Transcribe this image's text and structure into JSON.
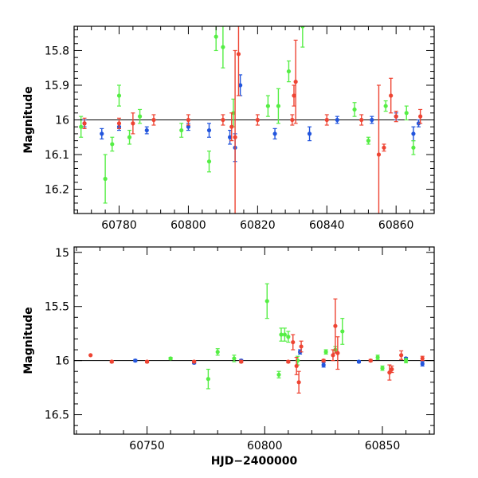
{
  "chart_data": [
    {
      "type": "scatter",
      "title": "",
      "xlabel": "",
      "ylabel": "Magnitude",
      "xlim": [
        60767,
        60871
      ],
      "ylim": [
        16.27,
        15.73
      ],
      "y_inverted": true,
      "xticks": [
        60780,
        60800,
        60820,
        60840,
        60860
      ],
      "yticks": [
        15.8,
        15.9,
        16.0,
        16.1,
        16.2
      ],
      "ytick_labels": [
        "15.8",
        "15.9",
        "16",
        "16.1",
        "16.2"
      ],
      "reference_line": 16.0,
      "series": [
        {
          "color": "#2255dd",
          "points": [
            {
              "x": 60770,
              "y": 16.01,
              "err": 0.01
            },
            {
              "x": 60775,
              "y": 16.04,
              "err": 0.015
            },
            {
              "x": 60780,
              "y": 16.02,
              "err": 0.01
            },
            {
              "x": 60788,
              "y": 16.03,
              "err": 0.01
            },
            {
              "x": 60800,
              "y": 16.02,
              "err": 0.01
            },
            {
              "x": 60806,
              "y": 16.03,
              "err": 0.02
            },
            {
              "x": 60812,
              "y": 16.05,
              "err": 0.02
            },
            {
              "x": 60813.5,
              "y": 16.08,
              "err": 0.04
            },
            {
              "x": 60815,
              "y": 15.9,
              "err": 0.03
            },
            {
              "x": 60825,
              "y": 16.04,
              "err": 0.015
            },
            {
              "x": 60835,
              "y": 16.04,
              "err": 0.02
            },
            {
              "x": 60843,
              "y": 16.0,
              "err": 0.01
            },
            {
              "x": 60853,
              "y": 16.0,
              "err": 0.01
            },
            {
              "x": 60860,
              "y": 15.99,
              "err": 0.01
            },
            {
              "x": 60865,
              "y": 16.04,
              "err": 0.02
            },
            {
              "x": 60866.5,
              "y": 16.01,
              "err": 0.01
            }
          ]
        },
        {
          "color": "#55ee44",
          "points": [
            {
              "x": 60769,
              "y": 16.02,
              "err": 0.03
            },
            {
              "x": 60776,
              "y": 16.17,
              "err": 0.07
            },
            {
              "x": 60778,
              "y": 16.07,
              "err": 0.02
            },
            {
              "x": 60780,
              "y": 15.93,
              "err": 0.03
            },
            {
              "x": 60783,
              "y": 16.05,
              "err": 0.02
            },
            {
              "x": 60786,
              "y": 15.99,
              "err": 0.02
            },
            {
              "x": 60798,
              "y": 16.03,
              "err": 0.02
            },
            {
              "x": 60806,
              "y": 16.12,
              "err": 0.03
            },
            {
              "x": 60808,
              "y": 15.76,
              "err": 0.04
            },
            {
              "x": 60810,
              "y": 15.79,
              "err": 0.06
            },
            {
              "x": 60813,
              "y": 15.98,
              "err": 0.04
            },
            {
              "x": 60823,
              "y": 15.96,
              "err": 0.03
            },
            {
              "x": 60826,
              "y": 15.96,
              "err": 0.05
            },
            {
              "x": 60829,
              "y": 15.86,
              "err": 0.03
            },
            {
              "x": 60833,
              "y": 15.73,
              "err": 0.06
            },
            {
              "x": 60848,
              "y": 15.97,
              "err": 0.02
            },
            {
              "x": 60852,
              "y": 16.06,
              "err": 0.01
            },
            {
              "x": 60857,
              "y": 15.96,
              "err": 0.015
            },
            {
              "x": 60863,
              "y": 15.98,
              "err": 0.02
            },
            {
              "x": 60865,
              "y": 16.08,
              "err": 0.02
            }
          ]
        },
        {
          "color": "#ee4433",
          "points": [
            {
              "x": 60770,
              "y": 16.01,
              "err": 0.015
            },
            {
              "x": 60780,
              "y": 16.01,
              "err": 0.015
            },
            {
              "x": 60784,
              "y": 16.01,
              "err": 0.03
            },
            {
              "x": 60790,
              "y": 16.0,
              "err": 0.015
            },
            {
              "x": 60800,
              "y": 16.0,
              "err": 0.015
            },
            {
              "x": 60810,
              "y": 16.0,
              "err": 0.015
            },
            {
              "x": 60812.5,
              "y": 16.02,
              "err": 0.04
            },
            {
              "x": 60813.5,
              "y": 16.05,
              "err": 0.25
            },
            {
              "x": 60814.5,
              "y": 15.81,
              "err": 0.12
            },
            {
              "x": 60820,
              "y": 16.0,
              "err": 0.015
            },
            {
              "x": 60830,
              "y": 16.0,
              "err": 0.015
            },
            {
              "x": 60830.5,
              "y": 15.93,
              "err": 0.03
            },
            {
              "x": 60831,
              "y": 15.89,
              "err": 0.12
            },
            {
              "x": 60840,
              "y": 16.0,
              "err": 0.015
            },
            {
              "x": 60850,
              "y": 16.0,
              "err": 0.015
            },
            {
              "x": 60855,
              "y": 16.1,
              "err": 0.2
            },
            {
              "x": 60856.5,
              "y": 16.08,
              "err": 0.01
            },
            {
              "x": 60858.5,
              "y": 15.93,
              "err": 0.05
            },
            {
              "x": 60860,
              "y": 15.99,
              "err": 0.015
            },
            {
              "x": 60867,
              "y": 15.99,
              "err": 0.02
            }
          ]
        }
      ]
    },
    {
      "type": "scatter",
      "title": "",
      "xlabel": "HJD−2400000",
      "ylabel": "Magnitude",
      "xlim": [
        60719,
        60872
      ],
      "ylim": [
        16.68,
        14.95
      ],
      "y_inverted": true,
      "xticks": [
        60750,
        60800,
        60850
      ],
      "yticks": [
        15.0,
        15.5,
        16.0,
        16.5
      ],
      "ytick_labels": [
        "15",
        "15.5",
        "16",
        "16.5"
      ],
      "reference_line": 16.0,
      "series": [
        {
          "color": "#2255dd",
          "points": [
            {
              "x": 60745,
              "y": 16.0,
              "err": 0.01
            },
            {
              "x": 60770,
              "y": 16.02,
              "err": 0.01
            },
            {
              "x": 60790,
              "y": 16.0,
              "err": 0.01
            },
            {
              "x": 60815,
              "y": 15.92,
              "err": 0.02
            },
            {
              "x": 60825,
              "y": 16.04,
              "err": 0.02
            },
            {
              "x": 60840,
              "y": 16.01,
              "err": 0.01
            },
            {
              "x": 60860,
              "y": 15.98,
              "err": 0.01
            },
            {
              "x": 60867,
              "y": 16.03,
              "err": 0.02
            }
          ]
        },
        {
          "color": "#55ee44",
          "points": [
            {
              "x": 60760,
              "y": 15.98,
              "err": 0.01
            },
            {
              "x": 60776,
              "y": 16.17,
              "err": 0.09
            },
            {
              "x": 60780,
              "y": 15.92,
              "err": 0.03
            },
            {
              "x": 60787,
              "y": 15.98,
              "err": 0.03
            },
            {
              "x": 60801,
              "y": 15.45,
              "err": 0.16
            },
            {
              "x": 60806,
              "y": 16.13,
              "err": 0.03
            },
            {
              "x": 60807,
              "y": 15.76,
              "err": 0.06
            },
            {
              "x": 60808.5,
              "y": 15.76,
              "err": 0.06
            },
            {
              "x": 60810,
              "y": 15.78,
              "err": 0.05
            },
            {
              "x": 60814,
              "y": 16.0,
              "err": 0.04
            },
            {
              "x": 60826,
              "y": 15.92,
              "err": 0.02
            },
            {
              "x": 60830,
              "y": 15.9,
              "err": 0.03
            },
            {
              "x": 60833,
              "y": 15.73,
              "err": 0.12
            },
            {
              "x": 60848,
              "y": 15.97,
              "err": 0.02
            },
            {
              "x": 60850,
              "y": 16.07,
              "err": 0.02
            },
            {
              "x": 60860,
              "y": 16.0,
              "err": 0.02
            }
          ]
        },
        {
          "color": "#ee4433",
          "points": [
            {
              "x": 60726,
              "y": 15.95,
              "err": 0.0
            },
            {
              "x": 60735,
              "y": 16.01,
              "err": 0.01
            },
            {
              "x": 60750,
              "y": 16.01,
              "err": 0.01
            },
            {
              "x": 60770,
              "y": 16.01,
              "err": 0.01
            },
            {
              "x": 60790,
              "y": 16.01,
              "err": 0.01
            },
            {
              "x": 60810,
              "y": 16.01,
              "err": 0.01
            },
            {
              "x": 60812,
              "y": 15.83,
              "err": 0.07
            },
            {
              "x": 60813.5,
              "y": 16.05,
              "err": 0.08
            },
            {
              "x": 60814.5,
              "y": 16.2,
              "err": 0.1
            },
            {
              "x": 60815.5,
              "y": 15.87,
              "err": 0.05
            },
            {
              "x": 60825,
              "y": 16.0,
              "err": 0.01
            },
            {
              "x": 60829,
              "y": 15.95,
              "err": 0.05
            },
            {
              "x": 60830,
              "y": 15.68,
              "err": 0.25
            },
            {
              "x": 60831,
              "y": 15.93,
              "err": 0.15
            },
            {
              "x": 60845,
              "y": 16.0,
              "err": 0.01
            },
            {
              "x": 60853,
              "y": 16.11,
              "err": 0.07
            },
            {
              "x": 60854,
              "y": 16.08,
              "err": 0.03
            },
            {
              "x": 60858,
              "y": 15.95,
              "err": 0.04
            },
            {
              "x": 60867,
              "y": 15.98,
              "err": 0.02
            }
          ]
        }
      ]
    }
  ]
}
